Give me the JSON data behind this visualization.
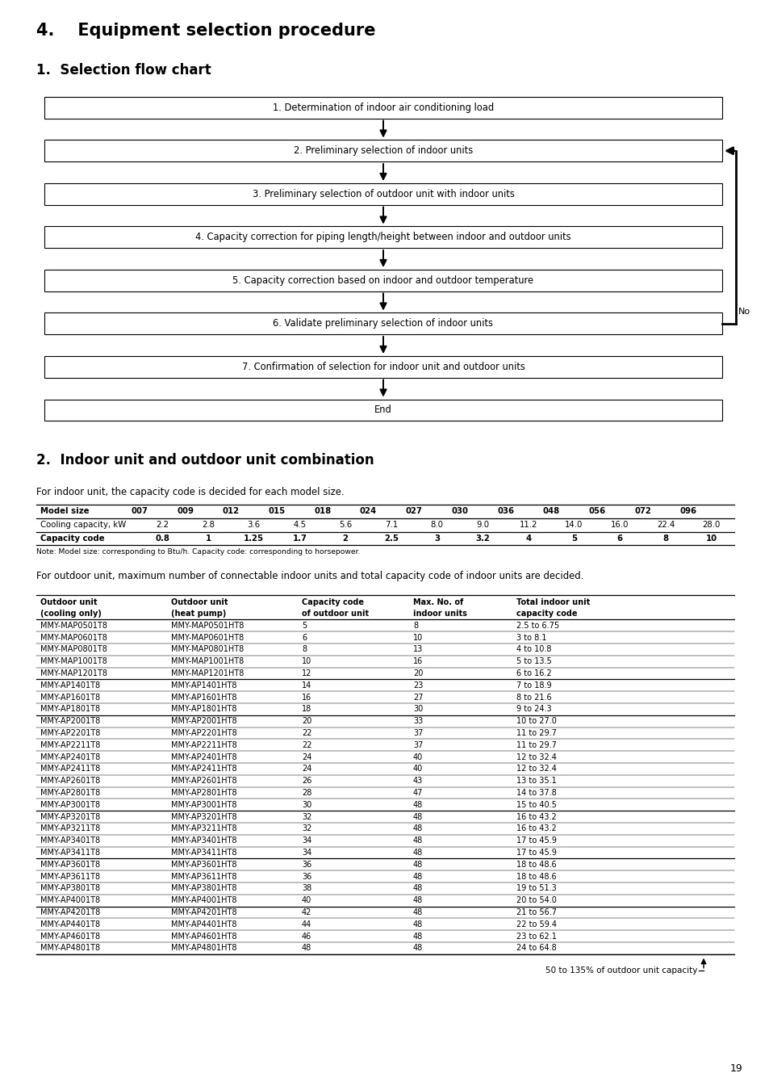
{
  "title1": "4.    Equipment selection procedure",
  "title2": "1.  Selection flow chart",
  "title3": "2.  Indoor unit and outdoor unit combination",
  "flowchart_steps": [
    "1. Determination of indoor air conditioning load",
    "2. Preliminary selection of indoor units",
    "3. Preliminary selection of outdoor unit with indoor units",
    "4. Capacity correction for piping length/height between indoor and outdoor units",
    "5. Capacity correction based on indoor and outdoor temperature",
    "6. Validate preliminary selection of indoor units",
    "7. Confirmation of selection for indoor unit and outdoor units",
    "End"
  ],
  "indoor_table_headers": [
    "Model size",
    "007",
    "009",
    "012",
    "015",
    "018",
    "024",
    "027",
    "030",
    "036",
    "048",
    "056",
    "072",
    "096"
  ],
  "indoor_table_rows": [
    [
      "Cooling capacity, kW",
      "2.2",
      "2.8",
      "3.6",
      "4.5",
      "5.6",
      "7.1",
      "8.0",
      "9.0",
      "11.2",
      "14.0",
      "16.0",
      "22.4",
      "28.0"
    ],
    [
      "Capacity code",
      "0.8",
      "1",
      "1.25",
      "1.7",
      "2",
      "2.5",
      "3",
      "3.2",
      "4",
      "5",
      "6",
      "8",
      "10"
    ]
  ],
  "indoor_note": "Note: Model size: corresponding to Btu/h. Capacity code: corresponding to horsepower.",
  "para1": "For indoor unit, the capacity code is decided for each model size.",
  "para2": "For outdoor unit, maximum number of connectable indoor units and total capacity code of indoor units are decided.",
  "outdoor_col_headers": [
    [
      "Outdoor unit",
      "(cooling only)"
    ],
    [
      "Outdoor unit",
      "(heat pump)"
    ],
    [
      "Capacity code",
      "of outdoor unit"
    ],
    [
      "Max. No. of",
      "indoor units"
    ],
    [
      "Total indoor unit",
      "capacity code"
    ]
  ],
  "outdoor_table_data": [
    [
      "MMY-MAP0501T8",
      "MMY-MAP0501HT8",
      "5",
      "8",
      "2.5 to 6.75"
    ],
    [
      "MMY-MAP0601T8",
      "MMY-MAP0601HT8",
      "6",
      "10",
      "3 to 8.1"
    ],
    [
      "MMY-MAP0801T8",
      "MMY-MAP0801HT8",
      "8",
      "13",
      "4 to 10.8"
    ],
    [
      "MMY-MAP1001T8",
      "MMY-MAP1001HT8",
      "10",
      "16",
      "5 to 13.5"
    ],
    [
      "MMY-MAP1201T8",
      "MMY-MAP1201HT8",
      "12",
      "20",
      "6 to 16.2"
    ],
    [
      "MMY-AP1401T8",
      "MMY-AP1401HT8",
      "14",
      "23",
      "7 to 18.9"
    ],
    [
      "MMY-AP1601T8",
      "MMY-AP1601HT8",
      "16",
      "27",
      "8 to 21.6"
    ],
    [
      "MMY-AP1801T8",
      "MMY-AP1801HT8",
      "18",
      "30",
      "9 to 24.3"
    ],
    [
      "MMY-AP2001T8",
      "MMY-AP2001HT8",
      "20",
      "33",
      "10 to 27.0"
    ],
    [
      "MMY-AP2201T8",
      "MMY-AP2201HT8",
      "22",
      "37",
      "11 to 29.7"
    ],
    [
      "MMY-AP2211T8",
      "MMY-AP2211HT8",
      "22",
      "37",
      "11 to 29.7"
    ],
    [
      "MMY-AP2401T8",
      "MMY-AP2401HT8",
      "24",
      "40",
      "12 to 32.4"
    ],
    [
      "MMY-AP2411T8",
      "MMY-AP2411HT8",
      "24",
      "40",
      "12 to 32.4"
    ],
    [
      "MMY-AP2601T8",
      "MMY-AP2601HT8",
      "26",
      "43",
      "13 to 35.1"
    ],
    [
      "MMY-AP2801T8",
      "MMY-AP2801HT8",
      "28",
      "47",
      "14 to 37.8"
    ],
    [
      "MMY-AP3001T8",
      "MMY-AP3001HT8",
      "30",
      "48",
      "15 to 40.5"
    ],
    [
      "MMY-AP3201T8",
      "MMY-AP3201HT8",
      "32",
      "48",
      "16 to 43.2"
    ],
    [
      "MMY-AP3211T8",
      "MMY-AP3211HT8",
      "32",
      "48",
      "16 to 43.2"
    ],
    [
      "MMY-AP3401T8",
      "MMY-AP3401HT8",
      "34",
      "48",
      "17 to 45.9"
    ],
    [
      "MMY-AP3411T8",
      "MMY-AP3411HT8",
      "34",
      "48",
      "17 to 45.9"
    ],
    [
      "MMY-AP3601T8",
      "MMY-AP3601HT8",
      "36",
      "48",
      "18 to 48.6"
    ],
    [
      "MMY-AP3611T8",
      "MMY-AP3611HT8",
      "36",
      "48",
      "18 to 48.6"
    ],
    [
      "MMY-AP3801T8",
      "MMY-AP3801HT8",
      "38",
      "48",
      "19 to 51.3"
    ],
    [
      "MMY-AP4001T8",
      "MMY-AP4001HT8",
      "40",
      "48",
      "20 to 54.0"
    ],
    [
      "MMY-AP4201T8",
      "MMY-AP4201HT8",
      "42",
      "48",
      "21 to 56.7"
    ],
    [
      "MMY-AP4401T8",
      "MMY-AP4401HT8",
      "44",
      "48",
      "22 to 59.4"
    ],
    [
      "MMY-AP4601T8",
      "MMY-AP4601HT8",
      "46",
      "48",
      "23 to 62.1"
    ],
    [
      "MMY-AP4801T8",
      "MMY-AP4801HT8",
      "48",
      "48",
      "24 to 64.8"
    ]
  ],
  "outdoor_sep_rows": [
    4,
    7,
    15,
    19,
    23
  ],
  "footer_note": "50 to 135% of outdoor unit capacity",
  "page_number": "19",
  "bg_color": "#ffffff"
}
